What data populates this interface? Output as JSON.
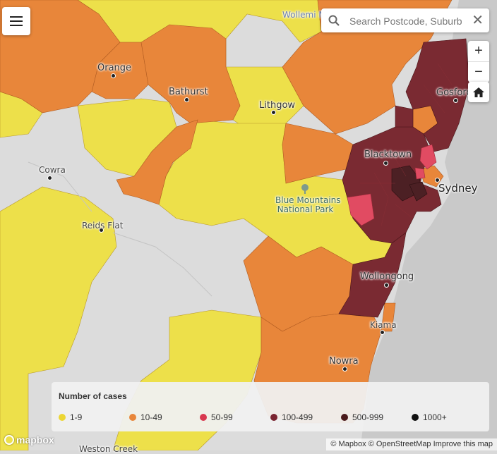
{
  "search": {
    "placeholder": "Search Postcode, Suburb",
    "clear_icon": "close-icon",
    "search_icon": "search-icon"
  },
  "controls": {
    "zoom_in": "+",
    "zoom_out": "−",
    "home_icon": "home-icon"
  },
  "places": {
    "orange": "Orange",
    "bathurst": "Bathurst",
    "lithgow": "Lithgow",
    "cowra": "Cowra",
    "reids_flat": "Reids Flat",
    "blacktown": "Blacktown",
    "sydney": "Sydney",
    "gosford": "Gosford",
    "blue_mountains": "Blue Mountains",
    "national_park": "National Park",
    "wollongong": "Wollongong",
    "kiama": "Kiama",
    "nowra": "Nowra",
    "weston_creek": "Weston Creek",
    "wollemi": "Wollemi N"
  },
  "legend": {
    "title": "Number of cases",
    "items": [
      {
        "label": "1-9",
        "color": "#ecd634"
      },
      {
        "label": "10-49",
        "color": "#e8863a"
      },
      {
        "label": "50-99",
        "color": "#d8384f"
      },
      {
        "label": "100-499",
        "color": "#7a2430"
      },
      {
        "label": "500-999",
        "color": "#4a1a1c"
      },
      {
        "label": "1000+",
        "color": "#111111"
      }
    ]
  },
  "mapbox": "mapbox",
  "attribution": {
    "mapbox": "© Mapbox",
    "osm": "© OpenStreetMap",
    "improve": "Improve this map"
  },
  "colors": {
    "yellow": "#ede04a",
    "orange": "#e8863a",
    "red": "#e14b62",
    "maroon": "#7a2a32",
    "darkmaroon": "#4c2024",
    "grey": "#dcdcdc",
    "sea": "#c9c9c9"
  }
}
